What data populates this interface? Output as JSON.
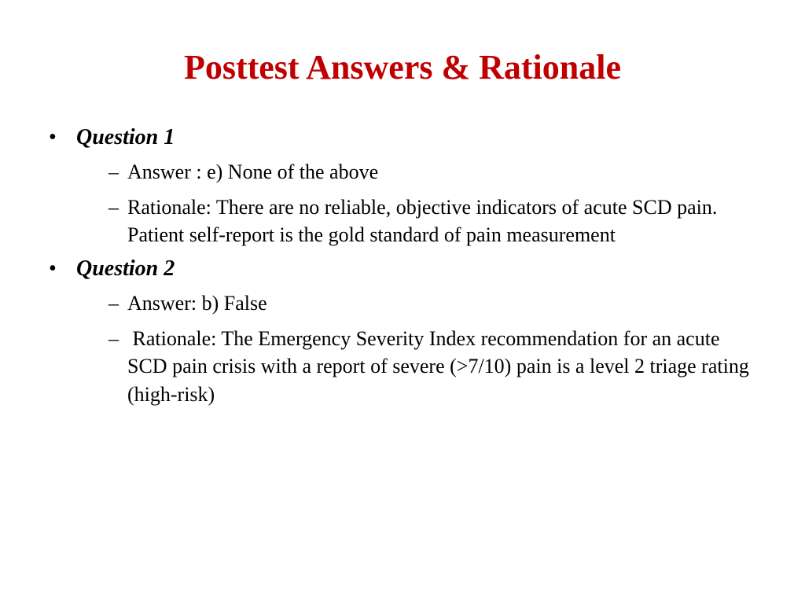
{
  "slide": {
    "title": "Posttest Answers & Rationale",
    "title_color": "#c00000",
    "background_color": "#ffffff",
    "body_color": "#000000",
    "title_fontsize": 44,
    "level1_fontsize": 28,
    "level2_fontsize": 26,
    "font_family": "Times New Roman",
    "questions": [
      {
        "label": "Question 1",
        "answer": "Answer :  e) None of the above",
        "rationale": "Rationale: There are no reliable, objective indicators of acute SCD pain.  Patient self-report is the gold standard of pain measurement"
      },
      {
        "label": "Question 2",
        "answer": "Answer: b) False",
        "rationale": " Rationale: The Emergency Severity Index recommendation for an acute SCD pain crisis with a report of severe (>7/10) pain is a level 2 triage rating (high-risk)"
      }
    ]
  }
}
